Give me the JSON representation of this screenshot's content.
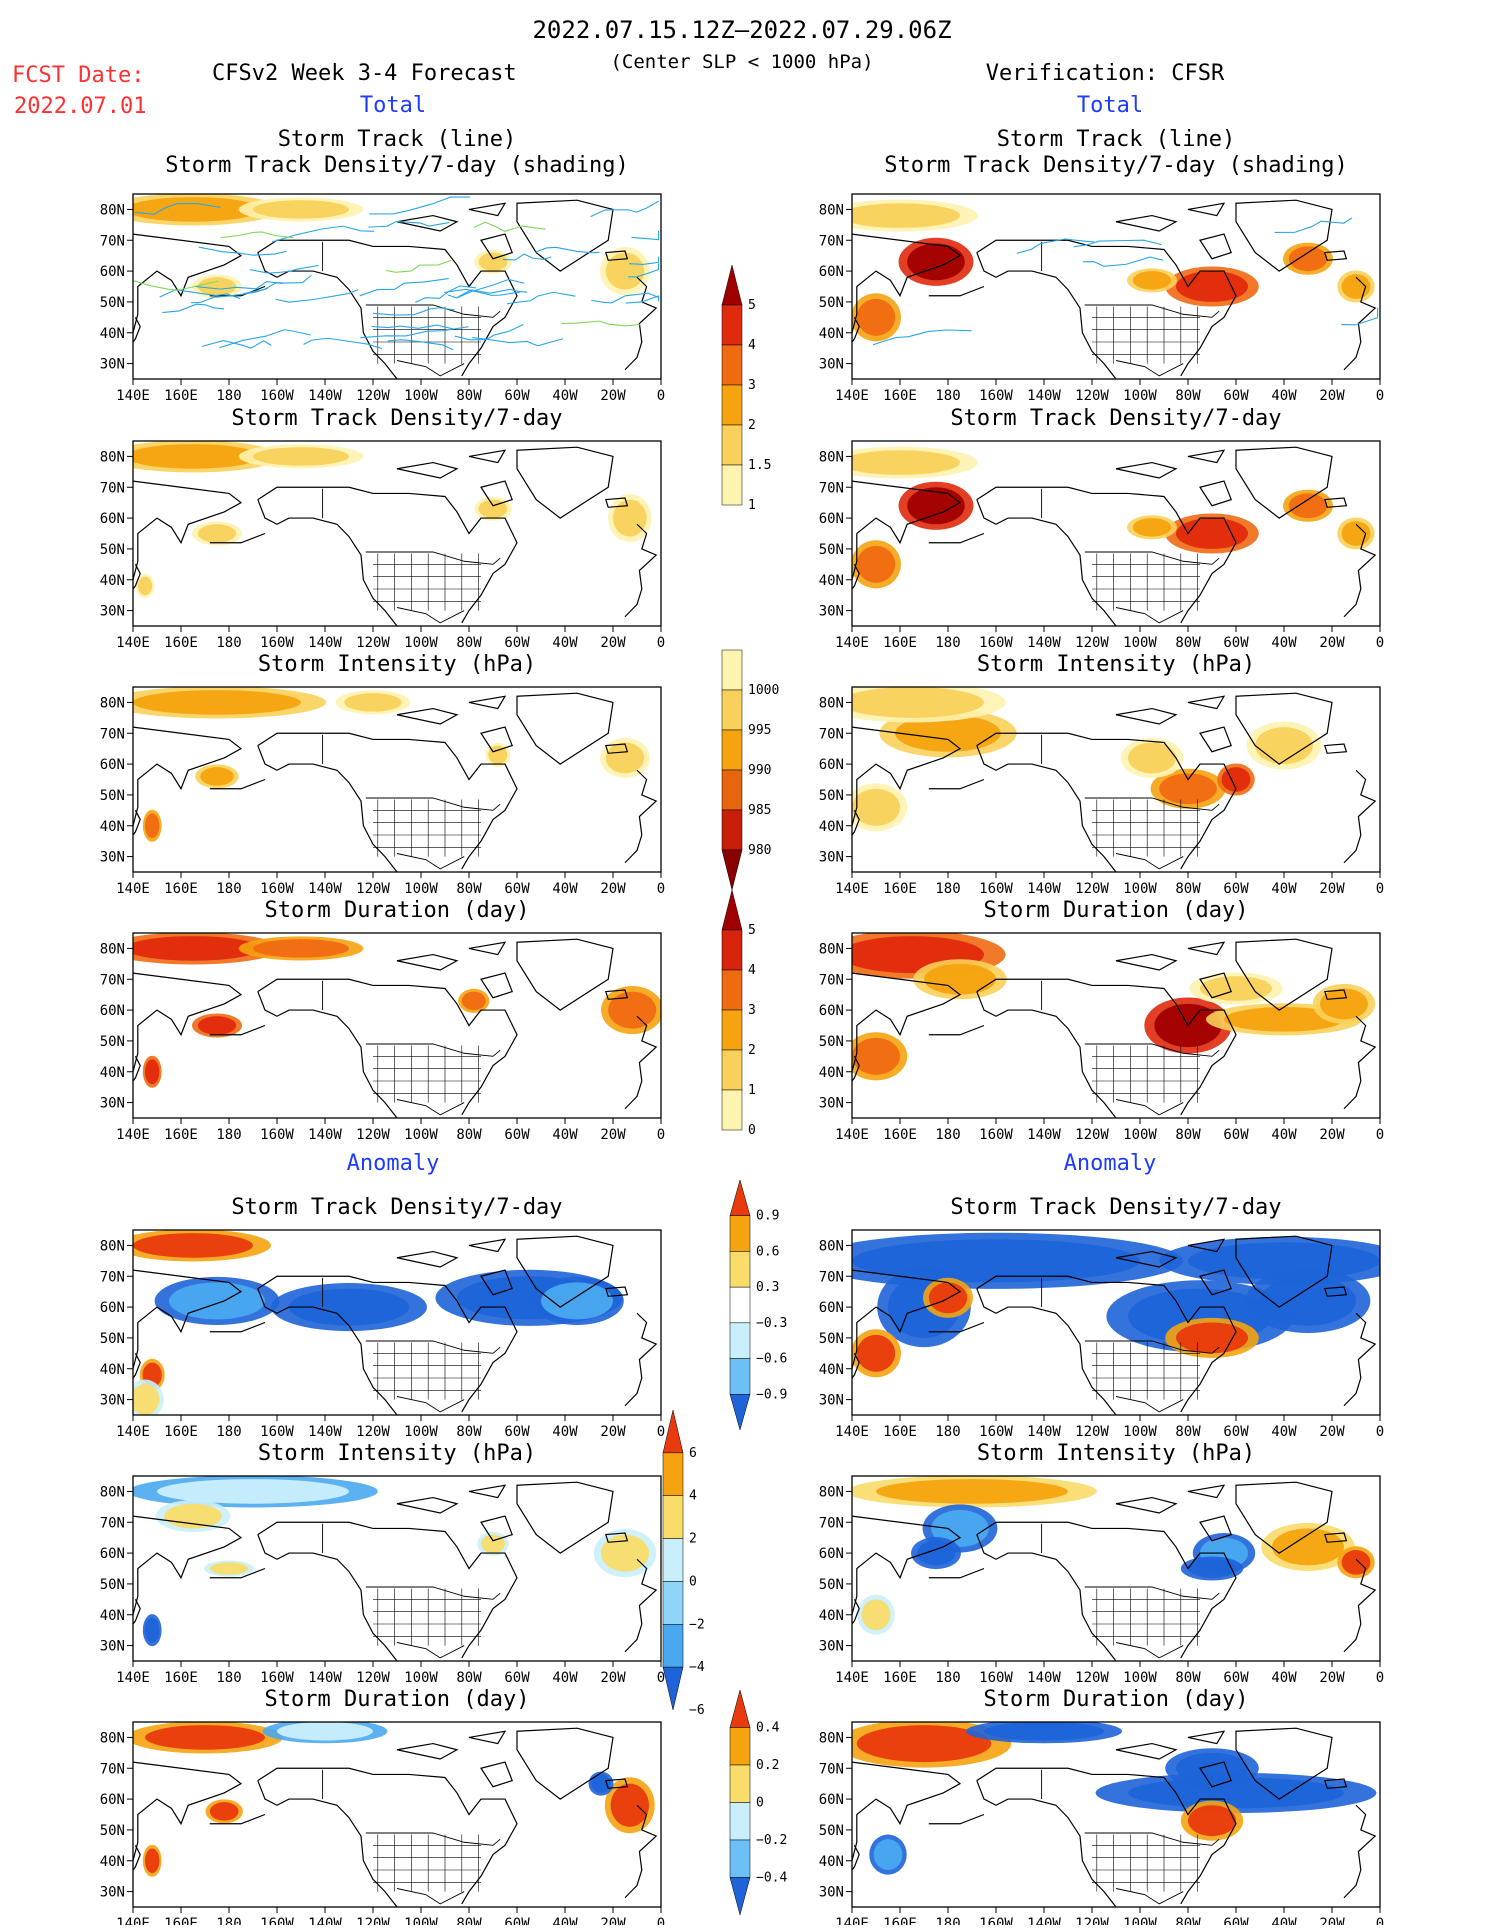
{
  "header": {
    "date_range": "2022.07.15.12Z–2022.07.29.06Z",
    "slp_note": "(Center SLP < 1000 hPa)",
    "fcst_label": "FCST Date:",
    "fcst_date": "2022.07.01",
    "left_title": "CFSv2 Week 3-4 Forecast",
    "right_title": "Verification: CFSR",
    "left_section_total": "Total",
    "right_section_total": "Total",
    "left_section_anomaly": "Anomaly",
    "right_section_anomaly": "Anomaly",
    "accent_red": "#ff3030",
    "accent_blue": "#1e3cff"
  },
  "panel_titles": {
    "storm_track_line": "Storm Track (line)",
    "storm_track_density_shading": "Storm Track Density/7-day (shading)",
    "storm_track_density": "Storm Track Density/7-day",
    "storm_intensity": "Storm Intensity (hPa)",
    "storm_duration": "Storm Duration (day)"
  },
  "axes": {
    "x_ticks": [
      "140E",
      "160E",
      "180",
      "160W",
      "140W",
      "120W",
      "100W",
      "80W",
      "60W",
      "40W",
      "20W",
      "0"
    ],
    "y_ticks": [
      "80N",
      "70N",
      "60N",
      "50N",
      "40N",
      "30N"
    ]
  },
  "colorbars": {
    "density_total": {
      "labels": [
        "5",
        "4",
        "3",
        "2",
        "1.5",
        "1"
      ],
      "colors": [
        "#a00000",
        "#e02a0c",
        "#f06a12",
        "#f5a30f",
        "#f9d15a",
        "#fff3b0"
      ]
    },
    "intensity_total": {
      "labels": [
        "1000",
        "995",
        "990",
        "985",
        "980"
      ],
      "colors": [
        "#fff3b0",
        "#f9d15a",
        "#f5a30f",
        "#e8650f",
        "#c81e0a",
        "#8a0000"
      ]
    },
    "duration_total": {
      "labels": [
        "5",
        "4",
        "3",
        "2",
        "1",
        "0"
      ],
      "colors": [
        "#a00000",
        "#d8240c",
        "#f06a12",
        "#f5a30f",
        "#f9d15a",
        "#fff3b0"
      ]
    },
    "density_anom": {
      "labels": [
        "0.9",
        "0.6",
        "0.3",
        "−0.3",
        "−0.6",
        "−0.9"
      ],
      "colors": [
        "#e83a0c",
        "#f5a30f",
        "#f9dc6a",
        "#ffffff",
        "#c9effc",
        "#6cc0f5",
        "#1e64d8"
      ]
    },
    "intensity_anom": {
      "labels": [
        "6",
        "4",
        "2",
        "0",
        "−2",
        "−4",
        "−6"
      ],
      "colors": [
        "#e83a0c",
        "#f5a30f",
        "#f9dc6a",
        "#c9effc",
        "#8ed5f8",
        "#4aa8f0",
        "#1e64d8"
      ]
    },
    "duration_anom": {
      "labels": [
        "0.4",
        "0.2",
        "0",
        "−0.2",
        "−0.4"
      ],
      "colors": [
        "#e83a0c",
        "#f5a30f",
        "#f9dc6a",
        "#c9effc",
        "#6cc0f5",
        "#1e64d8"
      ]
    }
  },
  "chart_data": [
    {
      "type": "heatmap",
      "panel": "CFSv2 Total Storm Track (line) / Storm Track Density/7-day (shading)",
      "x_range": [
        "140E",
        "0"
      ],
      "y_range": [
        "25N",
        "85N"
      ]
    },
    {
      "type": "heatmap",
      "panel": "CFSR Total Storm Track (line) / Storm Track Density/7-day (shading)",
      "x_range": [
        "140E",
        "0"
      ],
      "y_range": [
        "25N",
        "85N"
      ]
    },
    {
      "type": "heatmap",
      "panel": "CFSv2 Total Storm Track Density/7-day",
      "colorbar_levels": [
        1,
        1.5,
        2,
        3,
        4,
        5
      ]
    },
    {
      "type": "heatmap",
      "panel": "CFSR Total Storm Track Density/7-day",
      "colorbar_levels": [
        1,
        1.5,
        2,
        3,
        4,
        5
      ]
    },
    {
      "type": "heatmap",
      "panel": "CFSv2 Total Storm Intensity (hPa)",
      "colorbar_levels": [
        980,
        985,
        990,
        995,
        1000
      ]
    },
    {
      "type": "heatmap",
      "panel": "CFSR Total Storm Intensity (hPa)",
      "colorbar_levels": [
        980,
        985,
        990,
        995,
        1000
      ]
    },
    {
      "type": "heatmap",
      "panel": "CFSv2 Total Storm Duration (day)",
      "colorbar_levels": [
        0,
        1,
        2,
        3,
        4,
        5
      ]
    },
    {
      "type": "heatmap",
      "panel": "CFSR Total Storm Duration (day)",
      "colorbar_levels": [
        0,
        1,
        2,
        3,
        4,
        5
      ]
    },
    {
      "type": "heatmap",
      "panel": "CFSv2 Anomaly Storm Track Density/7-day",
      "colorbar_levels": [
        -0.9,
        -0.6,
        -0.3,
        0.3,
        0.6,
        0.9
      ]
    },
    {
      "type": "heatmap",
      "panel": "CFSR Anomaly Storm Track Density/7-day",
      "colorbar_levels": [
        -0.9,
        -0.6,
        -0.3,
        0.3,
        0.6,
        0.9
      ]
    },
    {
      "type": "heatmap",
      "panel": "CFSv2 Anomaly Storm Intensity (hPa)",
      "colorbar_levels": [
        -6,
        -4,
        -2,
        0,
        2,
        4,
        6
      ]
    },
    {
      "type": "heatmap",
      "panel": "CFSR Anomaly Storm Intensity (hPa)",
      "colorbar_levels": [
        -6,
        -4,
        -2,
        0,
        2,
        4,
        6
      ]
    },
    {
      "type": "heatmap",
      "panel": "CFSv2 Anomaly Storm Duration (day)",
      "colorbar_levels": [
        -0.4,
        -0.2,
        0,
        0.2,
        0.4
      ]
    },
    {
      "type": "heatmap",
      "panel": "CFSR Anomaly Storm Duration (day)",
      "colorbar_levels": [
        -0.4,
        -0.2,
        0,
        0.2,
        0.4
      ]
    }
  ]
}
